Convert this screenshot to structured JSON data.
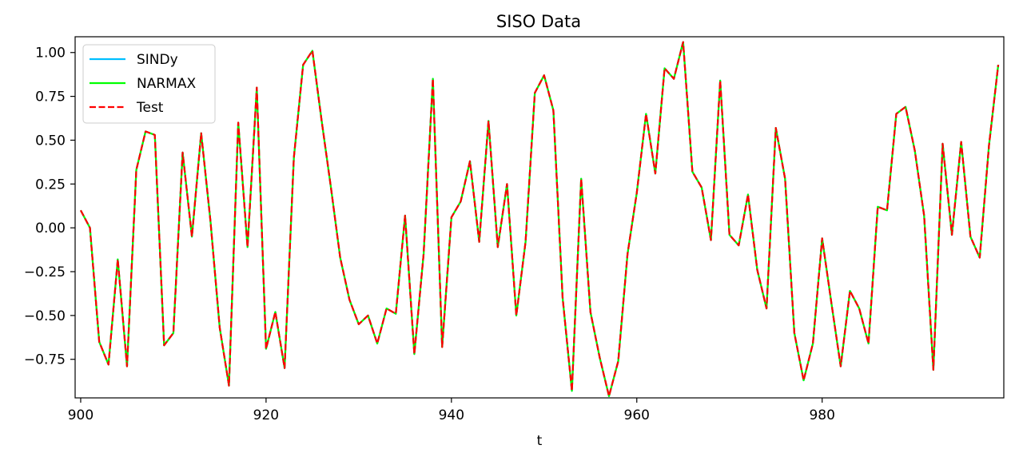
{
  "chart_data": {
    "type": "line",
    "title": "SISO Data",
    "xlabel": "t",
    "ylabel": "",
    "xlim": [
      899.4,
      999.6
    ],
    "ylim": [
      -0.97,
      1.09
    ],
    "xticks": [
      900,
      920,
      940,
      960,
      980
    ],
    "yticks": [
      1.0,
      0.75,
      0.5,
      0.25,
      0.0,
      -0.25,
      -0.5,
      -0.75
    ],
    "ytick_labels": [
      "1.00",
      "0.75",
      "0.50",
      "0.25",
      "0.00",
      "−0.25",
      "−0.50",
      "−0.75"
    ],
    "grid": false,
    "legend_position": "top-left",
    "x": [
      900,
      901,
      902,
      903,
      904,
      905,
      906,
      907,
      908,
      909,
      910,
      911,
      912,
      913,
      914,
      915,
      916,
      917,
      918,
      919,
      920,
      921,
      922,
      923,
      924,
      925,
      926,
      927,
      928,
      929,
      930,
      931,
      932,
      933,
      934,
      935,
      936,
      937,
      938,
      939,
      940,
      941,
      942,
      943,
      944,
      945,
      946,
      947,
      948,
      949,
      950,
      951,
      952,
      953,
      954,
      955,
      956,
      957,
      958,
      959,
      960,
      961,
      962,
      963,
      964,
      965,
      966,
      967,
      968,
      969,
      970,
      971,
      972,
      973,
      974,
      975,
      976,
      977,
      978,
      979,
      980,
      981,
      982,
      983,
      984,
      985,
      986,
      987,
      988,
      989,
      990,
      991,
      992,
      993,
      994,
      995,
      996,
      997,
      998,
      999
    ],
    "series": [
      {
        "name": "SINDy",
        "color": "#00bfff",
        "style": "solid",
        "values": [
          0.1,
          0.0,
          -0.65,
          -0.78,
          -0.18,
          -0.79,
          0.33,
          0.55,
          0.53,
          -0.67,
          -0.6,
          0.43,
          -0.05,
          0.54,
          0.04,
          -0.57,
          -0.9,
          0.6,
          -0.11,
          0.8,
          -0.69,
          -0.48,
          -0.8,
          0.4,
          0.93,
          1.01,
          0.61,
          0.23,
          -0.17,
          -0.41,
          -0.55,
          -0.5,
          -0.66,
          -0.46,
          -0.49,
          0.07,
          -0.72,
          -0.15,
          0.85,
          -0.68,
          0.06,
          0.15,
          0.38,
          -0.08,
          0.61,
          -0.11,
          0.25,
          -0.5,
          -0.08,
          0.77,
          0.87,
          0.67,
          -0.4,
          -0.93,
          0.28,
          -0.48,
          -0.74,
          -0.96,
          -0.76,
          -0.15,
          0.2,
          0.65,
          0.31,
          0.91,
          0.85,
          1.06,
          0.32,
          0.23,
          -0.07,
          0.84,
          -0.04,
          -0.1,
          0.19,
          -0.24,
          -0.46,
          0.57,
          0.28,
          -0.6,
          -0.87,
          -0.66,
          -0.06,
          -0.43,
          -0.79,
          -0.36,
          -0.46,
          -0.66,
          0.12,
          0.1,
          0.65,
          0.69,
          0.44,
          0.07,
          -0.81,
          0.48,
          -0.04,
          0.49,
          -0.05,
          -0.17,
          0.47,
          0.93
        ]
      },
      {
        "name": "NARMAX",
        "color": "#00ff00",
        "style": "solid",
        "values": [
          0.1,
          0.0,
          -0.65,
          -0.78,
          -0.18,
          -0.79,
          0.33,
          0.55,
          0.53,
          -0.67,
          -0.6,
          0.43,
          -0.05,
          0.54,
          0.04,
          -0.57,
          -0.9,
          0.6,
          -0.11,
          0.8,
          -0.69,
          -0.48,
          -0.8,
          0.4,
          0.93,
          1.01,
          0.61,
          0.23,
          -0.17,
          -0.41,
          -0.55,
          -0.5,
          -0.66,
          -0.46,
          -0.49,
          0.07,
          -0.72,
          -0.15,
          0.85,
          -0.68,
          0.06,
          0.15,
          0.38,
          -0.08,
          0.61,
          -0.11,
          0.25,
          -0.5,
          -0.08,
          0.77,
          0.87,
          0.67,
          -0.4,
          -0.93,
          0.28,
          -0.48,
          -0.74,
          -0.96,
          -0.76,
          -0.15,
          0.2,
          0.65,
          0.31,
          0.91,
          0.85,
          1.06,
          0.32,
          0.23,
          -0.07,
          0.84,
          -0.04,
          -0.1,
          0.19,
          -0.24,
          -0.46,
          0.57,
          0.28,
          -0.6,
          -0.87,
          -0.66,
          -0.06,
          -0.43,
          -0.79,
          -0.36,
          -0.46,
          -0.66,
          0.12,
          0.1,
          0.65,
          0.69,
          0.44,
          0.07,
          -0.81,
          0.48,
          -0.04,
          0.49,
          -0.05,
          -0.17,
          0.47,
          0.93
        ]
      },
      {
        "name": "Test",
        "color": "#ff0000",
        "style": "dashed",
        "values": [
          0.1,
          0.0,
          -0.65,
          -0.78,
          -0.18,
          -0.79,
          0.33,
          0.55,
          0.53,
          -0.67,
          -0.6,
          0.43,
          -0.05,
          0.54,
          0.04,
          -0.57,
          -0.9,
          0.6,
          -0.11,
          0.8,
          -0.69,
          -0.48,
          -0.8,
          0.4,
          0.93,
          1.01,
          0.61,
          0.23,
          -0.17,
          -0.41,
          -0.55,
          -0.5,
          -0.66,
          -0.46,
          -0.49,
          0.07,
          -0.72,
          -0.15,
          0.85,
          -0.68,
          0.06,
          0.15,
          0.38,
          -0.08,
          0.61,
          -0.11,
          0.25,
          -0.5,
          -0.08,
          0.77,
          0.87,
          0.67,
          -0.4,
          -0.93,
          0.28,
          -0.48,
          -0.74,
          -0.96,
          -0.76,
          -0.15,
          0.2,
          0.65,
          0.31,
          0.91,
          0.85,
          1.06,
          0.32,
          0.23,
          -0.07,
          0.84,
          -0.04,
          -0.1,
          0.19,
          -0.24,
          -0.46,
          0.57,
          0.28,
          -0.6,
          -0.87,
          -0.66,
          -0.06,
          -0.43,
          -0.79,
          -0.36,
          -0.46,
          -0.66,
          0.12,
          0.1,
          0.65,
          0.69,
          0.44,
          0.07,
          -0.81,
          0.48,
          -0.04,
          0.49,
          -0.05,
          -0.17,
          0.47,
          0.93
        ]
      }
    ]
  }
}
